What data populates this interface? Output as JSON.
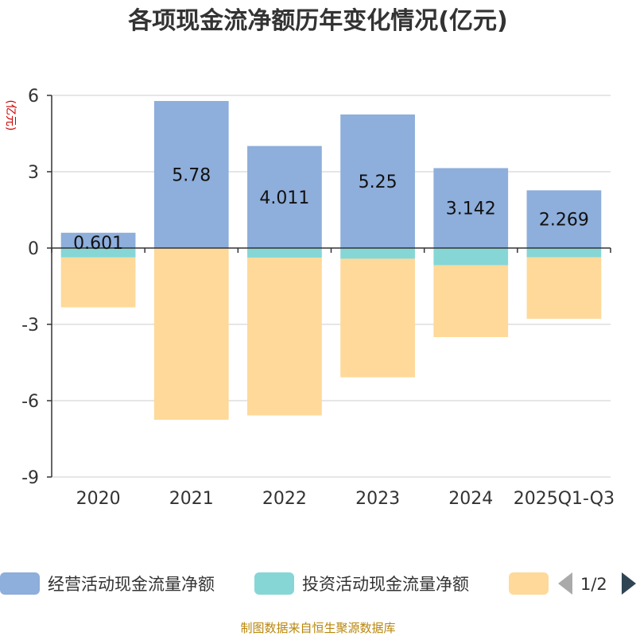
{
  "chart_data": {
    "type": "bar",
    "title": "各项现金流净额历年变化情况(亿元)",
    "ylabel": "(亿元)",
    "xlabel": "",
    "ylim": [
      -9,
      6
    ],
    "yticks": [
      6,
      3,
      0,
      -3,
      -6,
      -9
    ],
    "categories": [
      "2020",
      "2021",
      "2022",
      "2023",
      "2024",
      "2025Q1-Q3"
    ],
    "series": [
      {
        "name": "经营活动现金流量净额",
        "color": "#8eaedb",
        "values": [
          0.601,
          5.78,
          4.011,
          5.25,
          3.142,
          2.269
        ],
        "labeled": true
      },
      {
        "name": "投资活动现金流量净额",
        "color": "#86d6d6",
        "values": [
          -0.37,
          0.0,
          -0.38,
          -0.42,
          -0.68,
          -0.36
        ],
        "labeled": false
      },
      {
        "name": "",
        "color": "#fed999",
        "values": [
          -1.96,
          -6.75,
          -6.2,
          -4.66,
          -2.82,
          -2.42
        ],
        "labeled": false
      }
    ],
    "grid": true,
    "legend_position": "bottom"
  },
  "legend": {
    "page_indicator": "1/2"
  },
  "source": "制图数据来自恒生聚源数据库",
  "icons": {
    "prev": "triangle-left-icon",
    "next": "triangle-right-icon"
  }
}
